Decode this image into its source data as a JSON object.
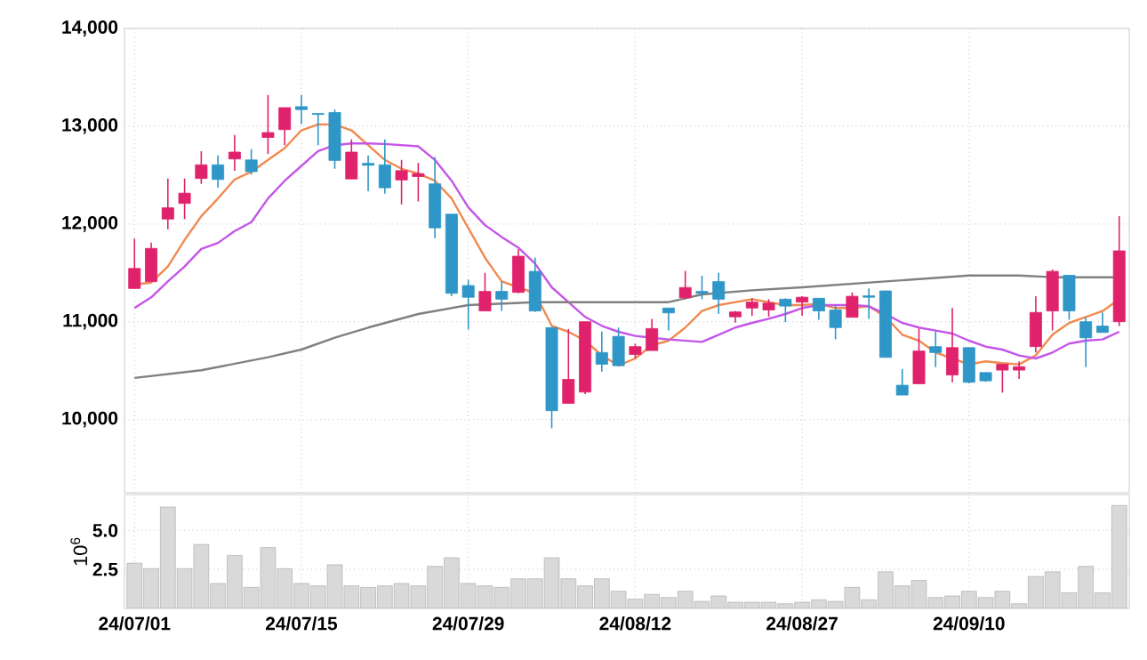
{
  "chart_data": [
    {
      "type": "candlestick",
      "categories": [
        null,
        null,
        null,
        null,
        null,
        null,
        null,
        null,
        null,
        null,
        null,
        null,
        null,
        null,
        null,
        null,
        null,
        null,
        null,
        null,
        null,
        null,
        null,
        null,
        null,
        null,
        null,
        null,
        null,
        null,
        null,
        null,
        null,
        null,
        null,
        null,
        null,
        null,
        null,
        null,
        null,
        null,
        null,
        null,
        null,
        null,
        null,
        null,
        null,
        null,
        null,
        null,
        null,
        null,
        null,
        null,
        null,
        null,
        null,
        null
      ],
      "ohlc": [
        [
          11340,
          11850,
          11340,
          11545
        ],
        [
          11410,
          11810,
          11410,
          11750
        ],
        [
          12050,
          12465,
          11945,
          12165
        ],
        [
          12210,
          12465,
          12050,
          12315
        ],
        [
          12465,
          12745,
          12410,
          12605
        ],
        [
          12605,
          12700,
          12370,
          12455
        ],
        [
          12665,
          12910,
          12545,
          12735
        ],
        [
          12655,
          12765,
          12505,
          12535
        ],
        [
          12885,
          13320,
          12715,
          12935
        ],
        [
          12965,
          13190,
          12805,
          13190
        ],
        [
          13200,
          13320,
          13020,
          13170
        ],
        [
          13130,
          13130,
          12805,
          13120
        ],
        [
          13140,
          13170,
          12565,
          12650
        ],
        [
          12460,
          12865,
          12460,
          12735
        ],
        [
          12620,
          12700,
          12335,
          12600
        ],
        [
          12605,
          12865,
          12310,
          12370
        ],
        [
          12450,
          12655,
          12200,
          12545
        ],
        [
          12485,
          12625,
          12230,
          12515
        ],
        [
          12410,
          12685,
          11855,
          11960
        ],
        [
          12100,
          12100,
          11260,
          11290
        ],
        [
          11370,
          11430,
          10920,
          11250
        ],
        [
          11110,
          11500,
          11110,
          11310
        ],
        [
          11310,
          11410,
          11110,
          11230
        ],
        [
          11300,
          11740,
          11290,
          11670
        ],
        [
          11515,
          11655,
          11100,
          11110
        ],
        [
          10940,
          10940,
          9910,
          10090
        ],
        [
          10165,
          10925,
          10165,
          10410
        ],
        [
          10280,
          11000,
          10260,
          11000
        ],
        [
          10685,
          10900,
          10490,
          10565
        ],
        [
          10850,
          10940,
          10550,
          10550
        ],
        [
          10665,
          10775,
          10625,
          10745
        ],
        [
          10705,
          11030,
          10705,
          10930
        ],
        [
          11140,
          11140,
          10910,
          11090
        ],
        [
          11245,
          11520,
          11230,
          11350
        ],
        [
          11310,
          11470,
          11230,
          11290
        ],
        [
          11410,
          11500,
          11080,
          11230
        ],
        [
          11050,
          11110,
          10990,
          11100
        ],
        [
          11140,
          11240,
          11060,
          11200
        ],
        [
          11120,
          11230,
          11050,
          11190
        ],
        [
          11230,
          11240,
          10995,
          11160
        ],
        [
          11200,
          11260,
          11060,
          11250
        ],
        [
          11240,
          11240,
          11020,
          11110
        ],
        [
          11120,
          11170,
          10820,
          10940
        ],
        [
          11045,
          11300,
          11045,
          11260
        ],
        [
          11265,
          11340,
          11030,
          11250
        ],
        [
          11315,
          11320,
          10635,
          10635
        ],
        [
          10350,
          10515,
          10250,
          10250
        ],
        [
          10365,
          10930,
          10365,
          10700
        ],
        [
          10745,
          10900,
          10535,
          10685
        ],
        [
          10455,
          11140,
          10380,
          10735
        ],
        [
          10735,
          10735,
          10370,
          10380
        ],
        [
          10480,
          10480,
          10385,
          10395
        ],
        [
          10505,
          10565,
          10275,
          10565
        ],
        [
          10505,
          10595,
          10415,
          10540
        ],
        [
          10745,
          11260,
          10685,
          11095
        ],
        [
          11110,
          11535,
          10910,
          11515
        ],
        [
          11475,
          11475,
          11020,
          11110
        ],
        [
          11000,
          11045,
          10535,
          10835
        ],
        [
          10955,
          11095,
          10890,
          10890
        ],
        [
          11000,
          12080,
          10955,
          11725
        ]
      ],
      "colors": [
        "#e0226c",
        "#e0226c",
        "#e0226c",
        "#e0226c",
        "#e0226c",
        "#2f96c8",
        "#e0226c",
        "#2f96c8",
        "#e0226c",
        "#e0226c",
        "#2f96c8",
        "#2f96c8",
        "#2f96c8",
        "#e0226c",
        "#2f96c8",
        "#2f96c8",
        "#e0226c",
        "#e0226c",
        "#2f96c8",
        "#2f96c8",
        "#2f96c8",
        "#e0226c",
        "#2f96c8",
        "#e0226c",
        "#2f96c8",
        "#2f96c8",
        "#e0226c",
        "#e0226c",
        "#2f96c8",
        "#2f96c8",
        "#e0226c",
        "#e0226c",
        "#2f96c8",
        "#e0226c",
        "#2f96c8",
        "#2f96c8",
        "#e0226c",
        "#e0226c",
        "#e0226c",
        "#2f96c8",
        "#e0226c",
        "#2f96c8",
        "#2f96c8",
        "#e0226c",
        "#2f96c8",
        "#2f96c8",
        "#2f96c8",
        "#e0226c",
        "#2f96c8",
        "#e0226c",
        "#2f96c8",
        "#2f96c8",
        "#e0226c",
        "#e0226c",
        "#e0226c",
        "#e0226c",
        "#2f96c8",
        "#2f96c8",
        "#2f96c8",
        "#e0226c"
      ],
      "series": [
        {
          "type": "line",
          "color": "#f08a50",
          "values": [
            11382,
            11400,
            11564,
            11836,
            12079,
            12261,
            12455,
            12533,
            12655,
            12776,
            12958,
            13018,
            13018,
            12958,
            12806,
            12655,
            12564,
            12515,
            12442,
            12261,
            11958,
            11655,
            11412,
            11352,
            11291,
            10958,
            10897,
            10806,
            10655,
            10552,
            10624,
            10758,
            10806,
            10940,
            11109,
            11170,
            11200,
            11230,
            11200,
            11170,
            11170,
            11182,
            11140,
            11140,
            11158,
            11049,
            10867,
            10806,
            10685,
            10624,
            10564,
            10594,
            10576,
            10564,
            10655,
            10867,
            10988,
            11049,
            11109,
            11230
          ]
        },
        {
          "type": "line",
          "color": "#c455e8",
          "values": [
            11140,
            11249,
            11412,
            11564,
            11745,
            11806,
            11927,
            12018,
            12261,
            12442,
            12594,
            12745,
            12806,
            12824,
            12824,
            12818,
            12806,
            12794,
            12655,
            12442,
            12170,
            11988,
            11867,
            11758,
            11594,
            11352,
            11200,
            11049,
            10958,
            10897,
            10855,
            10836,
            10818,
            10806,
            10794,
            10867,
            10940,
            10988,
            11030,
            11079,
            11140,
            11170,
            11170,
            11170,
            11158,
            11079,
            10988,
            10940,
            10909,
            10879,
            10806,
            10745,
            10715,
            10655,
            10624,
            10685,
            10776,
            10806,
            10818,
            10897
          ]
        },
        {
          "type": "line",
          "color": "#808080",
          "values": [
            10425,
            null,
            null,
            null,
            10503,
            null,
            null,
            null,
            10637,
            null,
            10715,
            null,
            10836,
            null,
            10940,
            null,
            null,
            11079,
            null,
            null,
            11170,
            null,
            null,
            null,
            11200,
            null,
            null,
            null,
            11200,
            null,
            null,
            null,
            11200,
            null,
            11279,
            null,
            null,
            11321,
            null,
            null,
            11352,
            null,
            null,
            null,
            null,
            11412,
            null,
            null,
            null,
            null,
            11473,
            null,
            null,
            11473,
            null,
            11455,
            null,
            null,
            null,
            11455
          ]
        }
      ],
      "ylim": [
        9250,
        14000
      ],
      "yticks": [
        {
          "value": 10000,
          "label": "10,000"
        },
        {
          "value": 11000,
          "label": "11,000"
        },
        {
          "value": 12000,
          "label": "12,000"
        },
        {
          "value": 13000,
          "label": "13,000"
        },
        {
          "value": 14000,
          "label": "14,000"
        }
      ],
      "grid": true,
      "tick_labels": "y"
    },
    {
      "type": "bar",
      "categories": [
        "24/07/01",
        null,
        null,
        null,
        null,
        null,
        null,
        null,
        null,
        null,
        "24/07/15",
        null,
        null,
        null,
        null,
        null,
        null,
        null,
        null,
        null,
        "24/07/29",
        null,
        null,
        null,
        null,
        null,
        null,
        null,
        null,
        null,
        "24/08/12",
        null,
        null,
        null,
        null,
        null,
        null,
        null,
        null,
        null,
        "24/08/27",
        null,
        null,
        null,
        null,
        null,
        null,
        null,
        null,
        null,
        "24/09/10",
        null,
        null,
        null,
        null,
        null,
        null,
        null,
        null,
        null
      ],
      "values": [
        2.9,
        2.55,
        6.5,
        2.55,
        4.1,
        1.6,
        3.4,
        1.35,
        3.9,
        2.55,
        1.6,
        1.45,
        2.8,
        1.45,
        1.35,
        1.45,
        1.6,
        1.45,
        2.7,
        3.25,
        1.6,
        1.45,
        1.35,
        1.9,
        1.9,
        3.25,
        1.9,
        1.45,
        1.9,
        1.1,
        0.6,
        0.9,
        0.7,
        1.1,
        0.45,
        0.8,
        0.4,
        0.4,
        0.4,
        0.3,
        0.4,
        0.55,
        0.45,
        1.35,
        0.55,
        2.35,
        1.45,
        1.8,
        0.7,
        0.8,
        1.1,
        0.7,
        1.1,
        0.3,
        2.05,
        2.35,
        1.0,
        2.7,
        1.0,
        6.6
      ],
      "color": "#d9d9d9",
      "ylabel": "10$^{6}$",
      "ylim": [
        0,
        7.3
      ],
      "yticks": [
        2.5,
        {
          "value": 5,
          "label": "5.0"
        }
      ],
      "grid": true
    }
  ]
}
